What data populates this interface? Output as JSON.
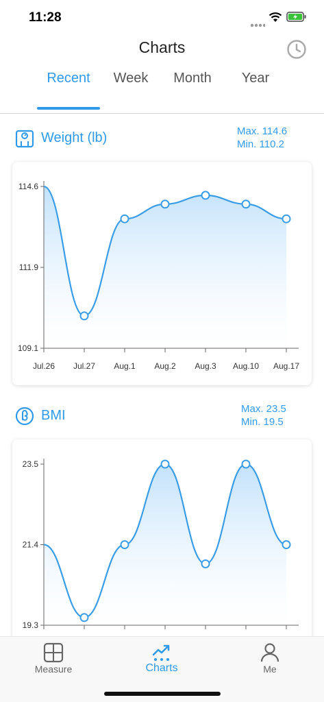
{
  "status_bar": {
    "time": "11:28"
  },
  "header": {
    "title": "Charts"
  },
  "tabs": [
    {
      "label": "Recent",
      "active": true
    },
    {
      "label": "Week",
      "active": false
    },
    {
      "label": "Month",
      "active": false
    },
    {
      "label": "Year",
      "active": false
    }
  ],
  "colors": {
    "accent": "#2f9be8",
    "line": "#3a9de6",
    "fill_top": "#bfe0fb"
  },
  "sections": [
    {
      "title": "Weight (lb)",
      "icon": "scale-icon",
      "max_label": "Max. 114.6",
      "min_label": "Min. 110.2"
    },
    {
      "title": "BMI",
      "icon": "bmi-icon",
      "max_label": "Max. 23.5",
      "min_label": "Min. 19.5"
    }
  ],
  "chart_data": [
    {
      "type": "area",
      "title": "Weight (lb)",
      "categories": [
        "Jul.26",
        "Jul.27",
        "Aug.1",
        "Aug.2",
        "Aug.3",
        "Aug.10",
        "Aug.17"
      ],
      "values": [
        114.6,
        110.2,
        113.5,
        114.0,
        114.3,
        114.0,
        113.5
      ],
      "yticks": [
        "114.6",
        "111.9",
        "109.1"
      ],
      "ylim": [
        109.1,
        114.6
      ]
    },
    {
      "type": "area",
      "title": "BMI",
      "categories": [
        "",
        "",
        "",
        "",
        "",
        "",
        ""
      ],
      "values": [
        21.4,
        19.5,
        21.4,
        23.5,
        20.9,
        23.5,
        21.4
      ],
      "yticks": [
        "23.5",
        "21.4",
        "19.3"
      ],
      "ylim": [
        19.3,
        23.5
      ]
    }
  ],
  "tab_bar": [
    {
      "label": "Measure",
      "icon": "measure-grid-icon",
      "active": false
    },
    {
      "label": "Charts",
      "icon": "trend-chart-icon",
      "active": true
    },
    {
      "label": "Me",
      "icon": "person-icon",
      "active": false
    }
  ]
}
